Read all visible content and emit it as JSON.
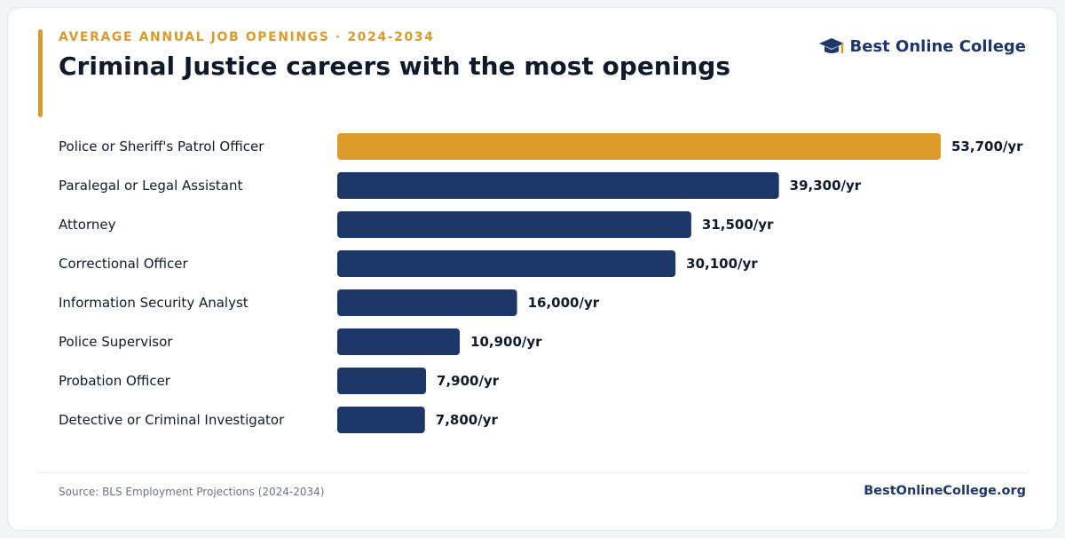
{
  "header": {
    "eyebrow": "AVERAGE ANNUAL JOB OPENINGS · 2024-2034",
    "title": "Criminal Justice careers with the most openings"
  },
  "brand": {
    "name": "Best Online College",
    "icon": "graduation-cap-icon"
  },
  "footer": {
    "source": "Source: BLS Employment Projections (2024-2034)",
    "site": "BestOnlineCollege.org"
  },
  "colors": {
    "highlight": "#db9a2a",
    "bar": "#1c3768",
    "text": "#0f1a2b"
  },
  "chart_data": {
    "type": "bar",
    "orientation": "horizontal",
    "categories": [
      "Police or Sheriff's Patrol Officer",
      "Paralegal or Legal Assistant",
      "Attorney",
      "Correctional Officer",
      "Information Security Analyst",
      "Police Supervisor",
      "Probation Officer",
      "Detective or Criminal Investigator"
    ],
    "values": [
      53700,
      39300,
      31500,
      30100,
      16000,
      10900,
      7900,
      7800
    ],
    "labels": [
      "53,700/yr",
      "39,300/yr",
      "31,500/yr",
      "30,100/yr",
      "16,000/yr",
      "10,900/yr",
      "7,900/yr",
      "7,800/yr"
    ],
    "highlight_index": 0,
    "xlim": [
      0,
      53700
    ],
    "grid": false,
    "legend": "none"
  }
}
